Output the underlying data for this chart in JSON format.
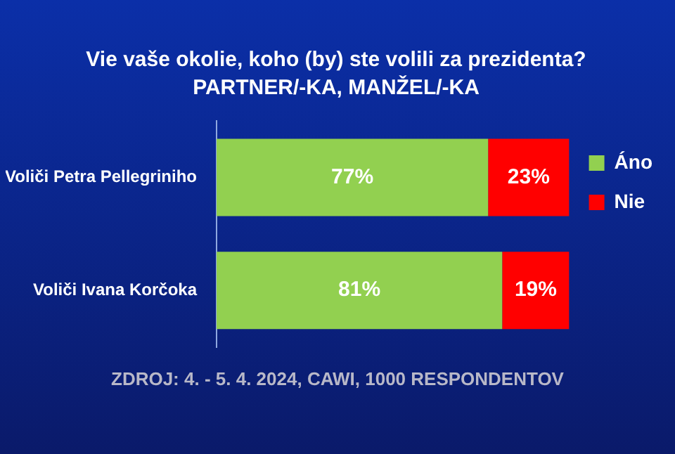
{
  "chart_data": {
    "type": "bar",
    "orientation": "horizontal",
    "stacked": true,
    "title": "Vie vaše okolie, koho (by) ste volili za prezidenta?",
    "subtitle": "PARTNER/-KA, MANŽEL/-KA",
    "categories": [
      "Voliči Petra Pellegriniho",
      "Voliči Ivana Korčoka"
    ],
    "series": [
      {
        "name": "Áno",
        "color": "#92d050",
        "values": [
          77,
          81
        ],
        "value_labels": [
          "77%",
          "81%"
        ]
      },
      {
        "name": "Nie",
        "color": "#ff0000",
        "values": [
          23,
          19
        ],
        "value_labels": [
          "23%",
          "19%"
        ]
      }
    ],
    "legend": "right",
    "tick_labels": "y",
    "grid": false,
    "annotations": [
      "ZDROJ: 4. - 5. 4. 2024, CAWI, 1000 RESPONDENTOV"
    ]
  }
}
